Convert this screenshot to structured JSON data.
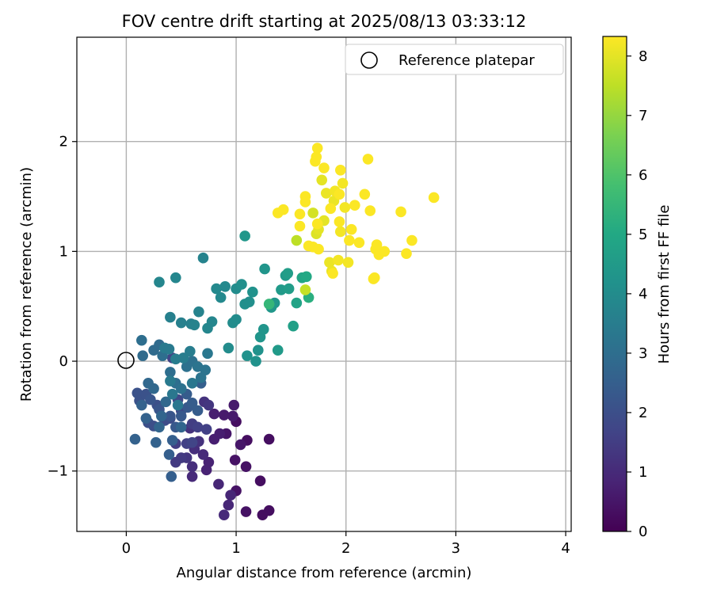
{
  "chart_data": {
    "type": "scatter",
    "title": "FOV centre drift starting at 2025/08/13 03:33:12",
    "xlabel": "Angular distance from reference (arcmin)",
    "ylabel": "Rotation from reference (arcmin)",
    "xlim": [
      -0.45,
      4.05
    ],
    "ylim": [
      -1.55,
      2.95
    ],
    "xticks": [
      0,
      1,
      2,
      3,
      4
    ],
    "yticks": [
      -1,
      0,
      1,
      2
    ],
    "xtick_labels": [
      "0",
      "1",
      "2",
      "3",
      "4"
    ],
    "ytick_labels": [
      "−1",
      "0",
      "1",
      "2"
    ],
    "grid": true,
    "legend": {
      "position": "top-right",
      "entries": [
        "Reference platepar"
      ]
    },
    "reference_point": {
      "x": 0,
      "y": 0,
      "marker": "open-circle"
    },
    "colorbar": {
      "label": "Hours from first FF file",
      "range": [
        0,
        8.33
      ],
      "ticks": [
        0,
        1,
        2,
        3,
        4,
        5,
        6,
        7,
        8
      ],
      "colormap": "viridis"
    },
    "points": [
      [
        1.0,
        -0.55,
        0.3
      ],
      [
        1.1,
        -0.72,
        0.3
      ],
      [
        1.3,
        -0.71,
        0.3
      ],
      [
        1.22,
        -1.09,
        0.3
      ],
      [
        1.3,
        -1.36,
        0.3
      ],
      [
        1.24,
        -1.4,
        0.3
      ],
      [
        1.09,
        -1.37,
        0.4
      ],
      [
        1.0,
        -1.18,
        0.4
      ],
      [
        1.09,
        -0.96,
        0.4
      ],
      [
        0.99,
        -0.9,
        0.4
      ],
      [
        1.04,
        -0.76,
        0.5
      ],
      [
        0.91,
        -0.66,
        0.5
      ],
      [
        0.89,
        -0.49,
        0.6
      ],
      [
        0.97,
        -0.5,
        0.6
      ],
      [
        0.98,
        -0.4,
        0.6
      ],
      [
        0.8,
        -0.48,
        0.7
      ],
      [
        0.8,
        -0.71,
        0.7
      ],
      [
        0.85,
        -0.66,
        0.7
      ],
      [
        0.75,
        -0.92,
        0.8
      ],
      [
        0.73,
        -0.99,
        0.8
      ],
      [
        0.84,
        -1.12,
        0.9
      ],
      [
        0.95,
        -1.22,
        0.9
      ],
      [
        0.93,
        -1.31,
        0.9
      ],
      [
        0.89,
        -1.4,
        1.0
      ],
      [
        0.7,
        -0.85,
        1.0
      ],
      [
        0.6,
        -1.05,
        1.0
      ],
      [
        0.6,
        -0.96,
        1.1
      ],
      [
        0.62,
        -0.8,
        1.1
      ],
      [
        0.58,
        -0.61,
        1.2
      ],
      [
        0.66,
        -0.73,
        1.2
      ],
      [
        0.71,
        -0.37,
        1.2
      ],
      [
        0.75,
        -0.4,
        1.3
      ],
      [
        0.55,
        -0.88,
        1.3
      ],
      [
        0.5,
        -0.88,
        1.4
      ],
      [
        0.45,
        -0.92,
        1.4
      ],
      [
        0.45,
        -0.75,
        1.5
      ],
      [
        0.6,
        -0.57,
        1.5
      ],
      [
        0.65,
        -0.6,
        1.6
      ],
      [
        0.73,
        -0.62,
        1.6
      ],
      [
        0.55,
        -0.75,
        1.6
      ],
      [
        0.6,
        -0.74,
        1.7
      ],
      [
        0.42,
        0.03,
        1.7
      ],
      [
        0.47,
        -0.35,
        1.8
      ],
      [
        0.5,
        -0.45,
        1.8
      ],
      [
        0.4,
        -0.52,
        1.9
      ],
      [
        0.35,
        -0.54,
        1.9
      ],
      [
        0.2,
        -0.56,
        2.0
      ],
      [
        0.25,
        -0.59,
        2.0
      ],
      [
        0.28,
        -0.4,
        2.0
      ],
      [
        0.1,
        -0.29,
        2.1
      ],
      [
        0.12,
        -0.36,
        2.1
      ],
      [
        0.18,
        -0.3,
        2.1
      ],
      [
        0.22,
        -0.35,
        2.2
      ],
      [
        0.3,
        -0.44,
        2.2
      ],
      [
        0.4,
        -0.5,
        2.2
      ],
      [
        0.5,
        -0.5,
        2.3
      ],
      [
        0.45,
        -0.6,
        2.3
      ],
      [
        0.56,
        -0.42,
        2.3
      ],
      [
        0.55,
        -0.3,
        2.4
      ],
      [
        0.6,
        -0.38,
        2.4
      ],
      [
        0.65,
        -0.45,
        2.4
      ],
      [
        0.68,
        -0.2,
        2.5
      ],
      [
        0.42,
        -0.72,
        2.5
      ],
      [
        0.39,
        -0.85,
        2.5
      ],
      [
        0.41,
        -1.05,
        2.5
      ],
      [
        0.08,
        -0.71,
        2.6
      ],
      [
        0.14,
        -0.4,
        2.6
      ],
      [
        0.18,
        -0.52,
        2.6
      ],
      [
        0.27,
        -0.74,
        2.6
      ],
      [
        0.3,
        -0.6,
        2.7
      ],
      [
        0.32,
        -0.5,
        2.7
      ],
      [
        0.5,
        -0.6,
        2.7
      ],
      [
        0.36,
        -0.37,
        2.8
      ],
      [
        0.25,
        -0.25,
        2.8
      ],
      [
        0.2,
        -0.2,
        2.8
      ],
      [
        0.25,
        0.1,
        2.9
      ],
      [
        0.15,
        0.05,
        2.9
      ],
      [
        0.3,
        0.15,
        2.9
      ],
      [
        0.14,
        0.19,
        3.0
      ],
      [
        0.33,
        0.05,
        3.0
      ],
      [
        0.4,
        -0.1,
        3.0
      ],
      [
        0.45,
        -0.2,
        3.0
      ],
      [
        0.5,
        -0.25,
        3.1
      ],
      [
        0.55,
        -0.05,
        3.1
      ],
      [
        0.6,
        0.0,
        3.1
      ],
      [
        0.65,
        -0.05,
        3.2
      ],
      [
        0.68,
        -0.15,
        3.2
      ],
      [
        0.72,
        -0.08,
        3.2
      ],
      [
        0.74,
        0.07,
        3.3
      ],
      [
        0.6,
        -0.2,
        3.3
      ],
      [
        0.47,
        -0.4,
        3.3
      ],
      [
        0.42,
        -0.3,
        3.3
      ],
      [
        0.4,
        -0.18,
        3.4
      ],
      [
        0.35,
        0.12,
        3.4
      ],
      [
        0.39,
        0.11,
        3.4
      ],
      [
        0.45,
        0.02,
        3.5
      ],
      [
        0.52,
        0.03,
        3.5
      ],
      [
        0.58,
        0.09,
        3.5
      ],
      [
        0.59,
        0.34,
        3.6
      ],
      [
        0.4,
        0.4,
        3.6
      ],
      [
        0.5,
        0.35,
        3.6
      ],
      [
        0.62,
        0.33,
        3.7
      ],
      [
        0.66,
        0.45,
        3.7
      ],
      [
        0.7,
        0.94,
        3.7
      ],
      [
        0.3,
        0.72,
        3.8
      ],
      [
        0.45,
        0.76,
        3.8
      ],
      [
        0.74,
        0.3,
        3.8
      ],
      [
        0.78,
        0.36,
        3.8
      ],
      [
        0.82,
        0.66,
        3.9
      ],
      [
        0.86,
        0.58,
        3.9
      ],
      [
        0.9,
        0.68,
        3.9
      ],
      [
        0.93,
        0.12,
        4.0
      ],
      [
        0.97,
        0.35,
        4.0
      ],
      [
        1.0,
        0.38,
        4.0
      ],
      [
        1.0,
        0.66,
        4.0
      ],
      [
        1.05,
        0.7,
        4.1
      ],
      [
        1.08,
        0.52,
        4.1
      ],
      [
        1.12,
        0.54,
        4.1
      ],
      [
        1.15,
        0.63,
        4.2
      ],
      [
        1.18,
        0.0,
        4.2
      ],
      [
        1.1,
        0.05,
        4.2
      ],
      [
        1.2,
        0.1,
        4.2
      ],
      [
        1.22,
        0.22,
        4.3
      ],
      [
        1.25,
        0.29,
        4.3
      ],
      [
        1.26,
        0.84,
        4.3
      ],
      [
        1.08,
        1.14,
        4.4
      ],
      [
        1.32,
        0.49,
        4.4
      ],
      [
        1.35,
        0.53,
        4.4
      ],
      [
        1.38,
        0.1,
        4.5
      ],
      [
        1.41,
        0.65,
        4.5
      ],
      [
        1.45,
        0.78,
        4.5
      ],
      [
        1.47,
        0.8,
        4.6
      ],
      [
        1.48,
        0.66,
        4.6
      ],
      [
        1.52,
        0.32,
        4.7
      ],
      [
        1.55,
        0.53,
        4.8
      ],
      [
        1.6,
        0.76,
        4.9
      ],
      [
        1.64,
        0.77,
        5.0
      ],
      [
        1.66,
        0.58,
        5.2
      ],
      [
        1.3,
        0.52,
        5.5
      ],
      [
        1.55,
        1.1,
        7.5
      ],
      [
        1.63,
        0.65,
        7.6
      ],
      [
        1.7,
        1.35,
        7.8
      ],
      [
        1.73,
        1.16,
        7.9
      ],
      [
        1.75,
        1.2,
        8.0
      ],
      [
        1.78,
        1.65,
        8.0
      ],
      [
        1.8,
        1.28,
        8.0
      ],
      [
        1.82,
        1.53,
        8.1
      ],
      [
        1.85,
        0.9,
        8.1
      ],
      [
        1.87,
        0.82,
        8.1
      ],
      [
        1.89,
        1.46,
        8.1
      ],
      [
        1.9,
        1.55,
        8.2
      ],
      [
        1.93,
        0.92,
        8.2
      ],
      [
        1.95,
        1.18,
        8.2
      ],
      [
        1.97,
        1.62,
        8.2
      ],
      [
        1.99,
        1.4,
        8.2
      ],
      [
        2.02,
        0.9,
        8.2
      ],
      [
        2.03,
        1.1,
        8.3
      ],
      [
        2.05,
        1.2,
        8.3
      ],
      [
        2.08,
        1.42,
        8.3
      ],
      [
        2.12,
        1.08,
        8.3
      ],
      [
        2.17,
        1.52,
        8.3
      ],
      [
        2.2,
        1.84,
        8.3
      ],
      [
        2.22,
        1.37,
        8.3
      ],
      [
        2.25,
        0.75,
        8.3
      ],
      [
        2.27,
        1.02,
        8.3
      ],
      [
        2.28,
        1.06,
        8.3
      ],
      [
        2.3,
        0.97,
        8.3
      ],
      [
        2.35,
        1.0,
        8.3
      ],
      [
        2.5,
        1.36,
        8.3
      ],
      [
        2.55,
        0.98,
        8.3
      ],
      [
        2.6,
        1.1,
        8.3
      ],
      [
        2.8,
        1.49,
        8.3
      ],
      [
        1.72,
        1.82,
        8.3
      ],
      [
        1.73,
        1.86,
        8.3
      ],
      [
        1.74,
        1.94,
        8.3
      ],
      [
        1.8,
        1.76,
        8.3
      ],
      [
        1.95,
        1.74,
        8.3
      ],
      [
        1.38,
        1.35,
        8.3
      ],
      [
        1.43,
        1.38,
        8.3
      ],
      [
        1.58,
        1.34,
        8.3
      ],
      [
        1.63,
        1.5,
        8.3
      ],
      [
        1.63,
        1.45,
        8.3
      ],
      [
        1.58,
        1.23,
        8.3
      ],
      [
        1.7,
        1.04,
        8.3
      ],
      [
        1.75,
        1.02,
        8.3
      ],
      [
        1.88,
        0.8,
        8.3
      ],
      [
        1.94,
        1.27,
        8.3
      ],
      [
        1.94,
        1.52,
        8.3
      ],
      [
        1.86,
        1.39,
        8.3
      ],
      [
        1.74,
        1.25,
        8.3
      ],
      [
        1.66,
        1.05,
        8.3
      ],
      [
        2.26,
        0.76,
        8.3
      ]
    ]
  }
}
